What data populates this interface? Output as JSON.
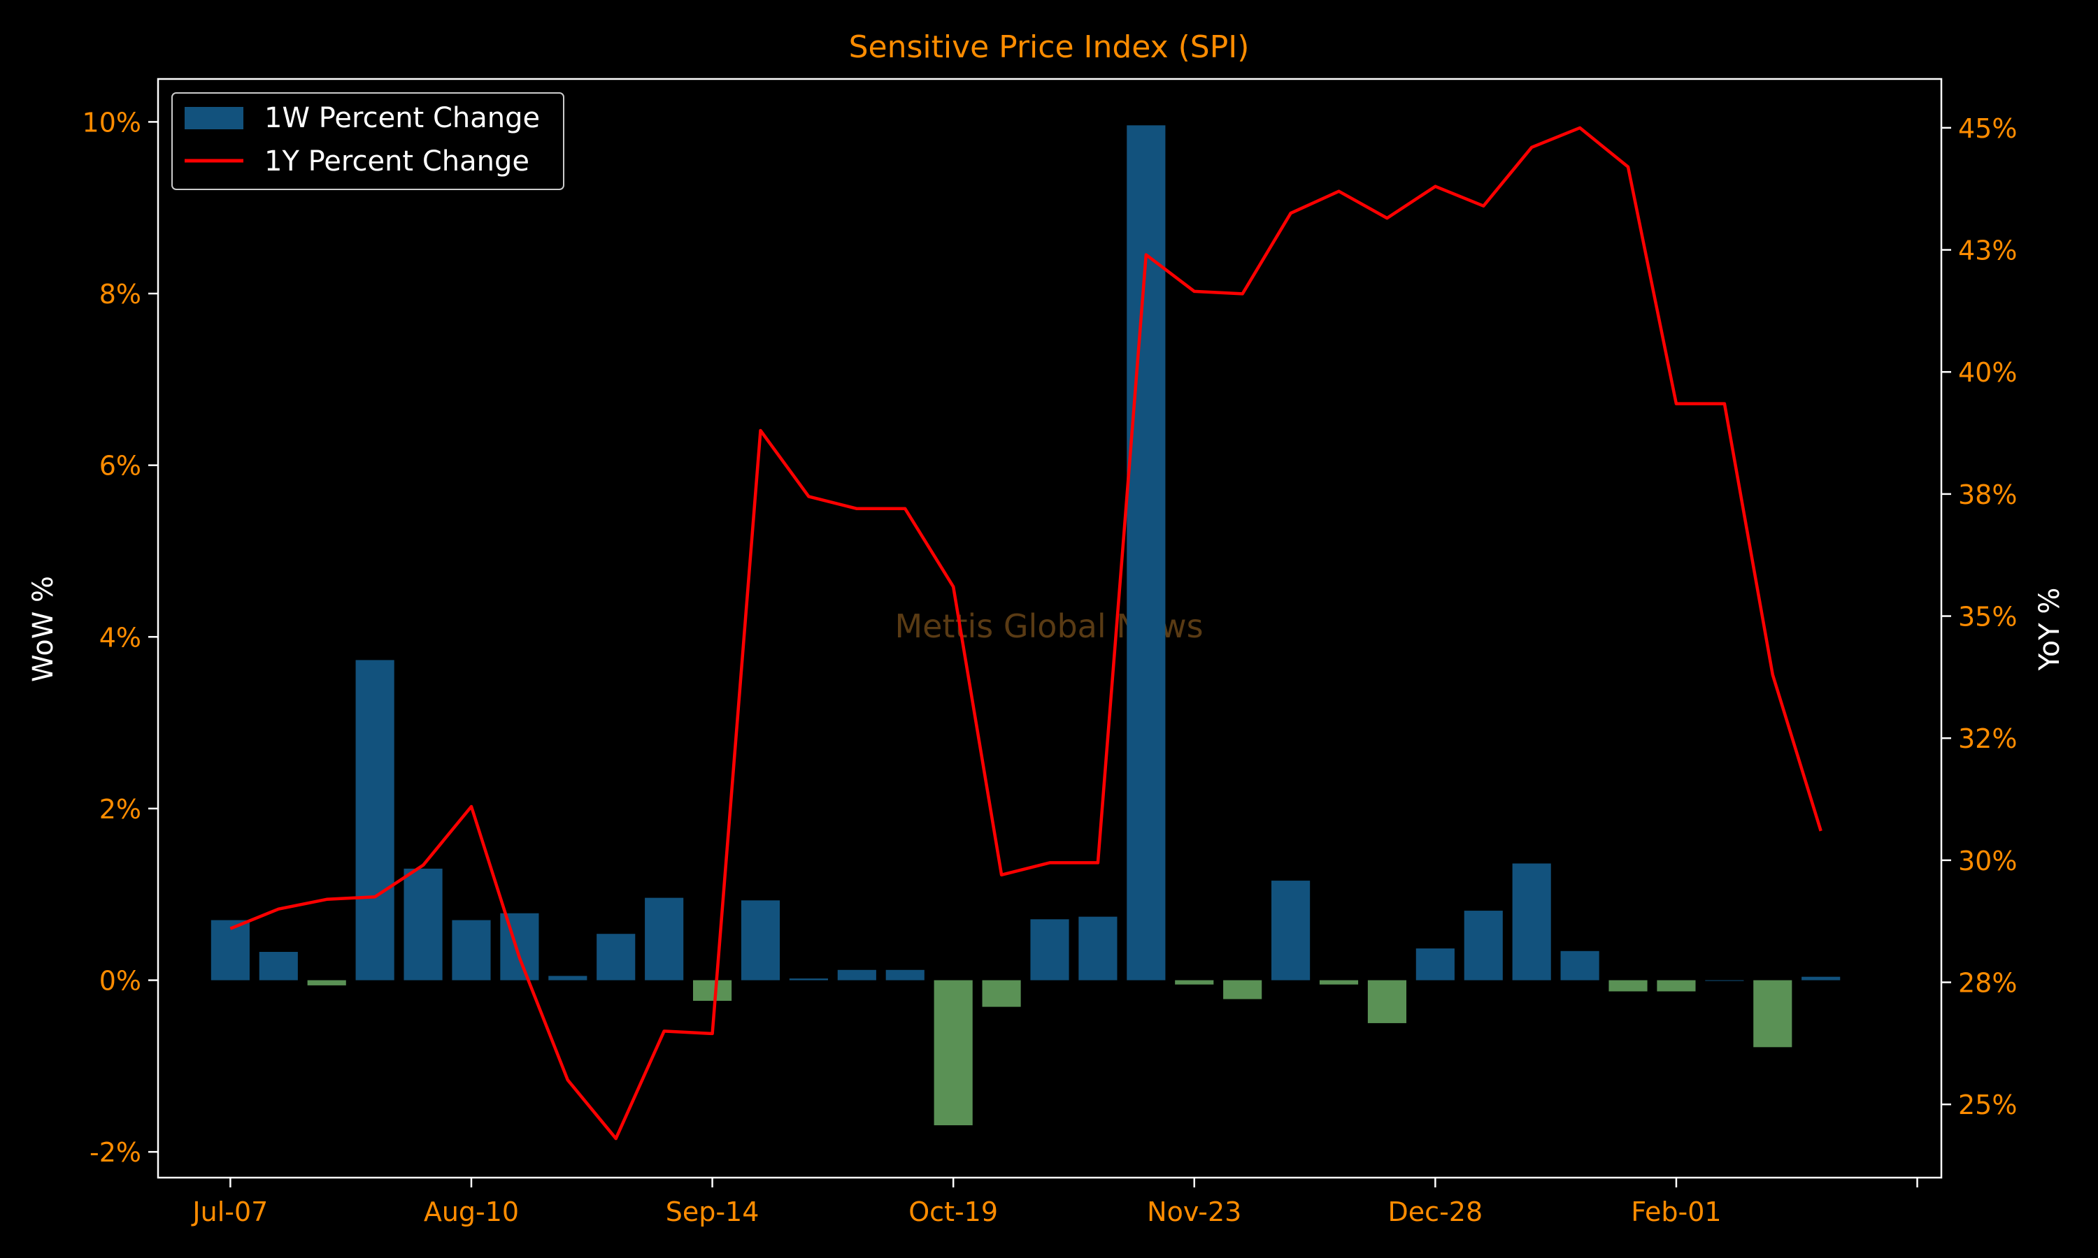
{
  "colors": {
    "background": "#000000",
    "accent": "#ff8c00",
    "axis": "#ffffff",
    "wow_positive": "#12527d",
    "wow_negative": "#5a9155",
    "yoy_line": "#ff0000",
    "watermark": "#5a3b14"
  },
  "chart_data": {
    "type": "bar",
    "title": "Sensitive Price Index (SPI)",
    "watermark": "Mettis Global News",
    "ylabel": "WoW %",
    "y2label": "YoY %",
    "ylim": [
      -2.3,
      10.5
    ],
    "y2lim": [
      23.5,
      46.0
    ],
    "yticks": [
      -2,
      0,
      2,
      4,
      6,
      8,
      10
    ],
    "ytick_labels": [
      "-2%",
      "0%",
      "2%",
      "4%",
      "6%",
      "8%",
      "10%"
    ],
    "y2ticks": [
      25,
      27.5,
      30,
      32.5,
      35,
      37.5,
      40,
      42.5,
      45
    ],
    "y2tick_labels": [
      "25%",
      "28%",
      "30%",
      "32%",
      "35%",
      "38%",
      "40%",
      "43%",
      "45%"
    ],
    "xlim": [
      -1.5,
      35.5
    ],
    "xticks": [
      0,
      5,
      10,
      15,
      20,
      25,
      30,
      35
    ],
    "xtick_labels": [
      "Jul-07",
      "Aug-10",
      "Sep-14",
      "Oct-19",
      "Nov-23",
      "Dec-28",
      "Feb-01",
      ""
    ],
    "legend_position": "top-left",
    "grid": false,
    "series": [
      {
        "name": "1W Percent Change",
        "type": "bar",
        "axis": "left",
        "x": [
          0,
          1,
          2,
          3,
          4,
          5,
          6,
          7,
          8,
          9,
          10,
          11,
          12,
          13,
          14,
          15,
          16,
          17,
          18,
          19,
          20,
          21,
          22,
          23,
          24,
          25,
          26,
          27,
          28,
          29,
          30,
          31,
          32,
          33
        ],
        "values": [
          0.7,
          0.33,
          -0.06,
          3.73,
          1.3,
          0.7,
          0.78,
          0.05,
          0.54,
          0.96,
          -0.24,
          0.93,
          0.02,
          0.12,
          0.12,
          -1.69,
          -0.31,
          0.71,
          0.74,
          9.96,
          -0.05,
          -0.22,
          1.16,
          -0.05,
          -0.5,
          0.37,
          0.81,
          1.36,
          0.34,
          -0.13,
          -0.13,
          0.0,
          -0.78,
          0.04
        ]
      },
      {
        "name": "1Y Percent Change",
        "type": "line",
        "axis": "right",
        "x": [
          0,
          1,
          2,
          3,
          4,
          5,
          6,
          7,
          8,
          9,
          10,
          11,
          12,
          13,
          14,
          15,
          16,
          17,
          18,
          19,
          20,
          21,
          22,
          23,
          24,
          25,
          26,
          27,
          28,
          29,
          30,
          31,
          32,
          33
        ],
        "values": [
          28.6,
          29.0,
          29.2,
          29.25,
          29.9,
          31.1,
          28.0,
          25.5,
          24.3,
          26.5,
          26.45,
          38.8,
          37.45,
          37.2,
          37.2,
          35.6,
          29.7,
          29.95,
          29.95,
          42.4,
          41.65,
          41.6,
          43.25,
          43.7,
          43.15,
          43.8,
          43.4,
          44.6,
          45.0,
          44.2,
          39.35,
          39.35,
          33.8,
          30.6
        ]
      }
    ]
  }
}
